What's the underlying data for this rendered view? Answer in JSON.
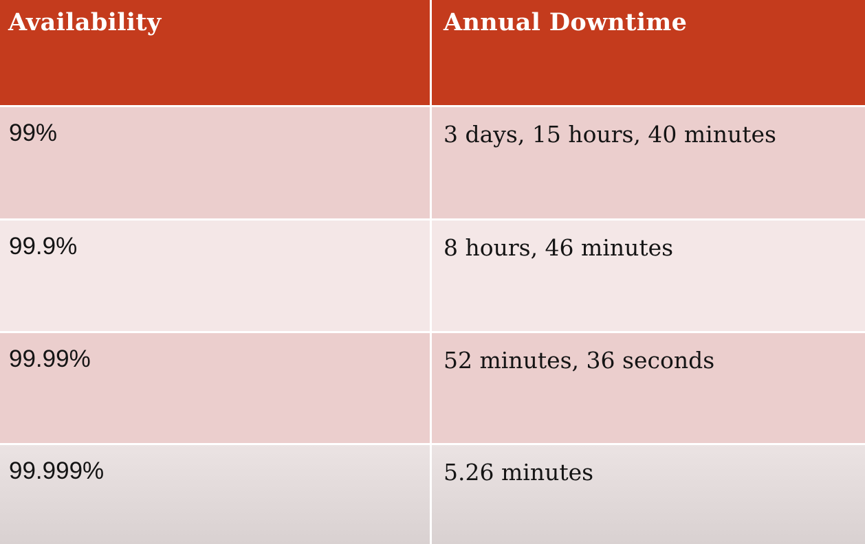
{
  "table": {
    "headers": [
      "Availability",
      "Annual Downtime"
    ],
    "rows": [
      [
        "99%",
        "3 days, 15 hours, 40 minutes"
      ],
      [
        "99.9%",
        "8 hours, 46 minutes"
      ],
      [
        "99.99%",
        "52 minutes, 36 seconds"
      ],
      [
        "99.999%",
        "5.26 minutes"
      ]
    ]
  },
  "colors": {
    "header_bg": "#c43b1d",
    "header_text": "#ffffff",
    "row_dark": "#ebcecd",
    "row_light": "#f4e7e7",
    "body_text": "#141414"
  }
}
